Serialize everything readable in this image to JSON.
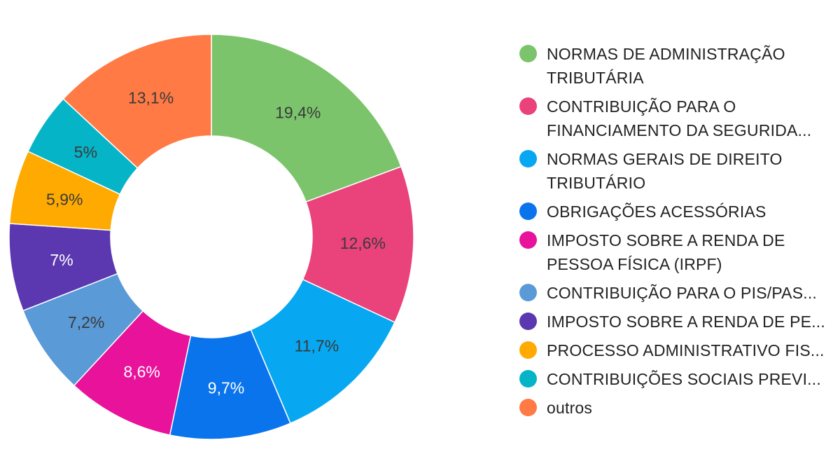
{
  "chart_data": {
    "type": "pie",
    "donut": true,
    "legend_position": "right",
    "slices": [
      {
        "label": "NORMAS DE ADMINISTRAÇÃO TRIBUTÁRIA",
        "value": 19.4,
        "display": "19,4%",
        "color": "#7cc46b",
        "label_color": "#3a3a3a"
      },
      {
        "label": "CONTRIBUIÇÃO PARA O FINANCIAMENTO DA SEGURIDA...",
        "value": 12.6,
        "display": "12,6%",
        "color": "#ea427b",
        "label_color": "#3a3a3a"
      },
      {
        "label": "NORMAS GERAIS DE DIREITO TRIBUTÁRIO",
        "value": 11.7,
        "display": "11,7%",
        "color": "#07a8f1",
        "label_color": "#3a3a3a"
      },
      {
        "label": "OBRIGAÇÕES ACESSÓRIAS",
        "value": 9.7,
        "display": "9,7%",
        "color": "#0a74ec",
        "label_color": "#ffffff"
      },
      {
        "label": "IMPOSTO SOBRE A RENDA DE PESSOA FÍSICA (IRPF)",
        "value": 8.6,
        "display": "8,6%",
        "color": "#e8129b",
        "label_color": "#ffffff"
      },
      {
        "label": "CONTRIBUIÇÃO PARA O PIS/PAS...",
        "value": 7.2,
        "display": "7,2%",
        "color": "#5a9ad6",
        "label_color": "#3a3a3a"
      },
      {
        "label": "IMPOSTO SOBRE A RENDA DE PE...",
        "value": 7.0,
        "display": "7%",
        "color": "#5b37b0",
        "label_color": "#ffffff"
      },
      {
        "label": "PROCESSO ADMINISTRATIVO FIS...",
        "value": 5.9,
        "display": "5,9%",
        "color": "#ffaa00",
        "label_color": "#3a3a3a"
      },
      {
        "label": "CONTRIBUIÇÕES SOCIAIS PREVI...",
        "value": 5.0,
        "display": "5%",
        "color": "#06b4c8",
        "label_color": "#3a3a3a"
      },
      {
        "label": "outros",
        "value": 13.1,
        "display": "13,1%",
        "color": "#ff7a45",
        "label_color": "#3a3a3a"
      }
    ]
  },
  "legend": {
    "items": [
      {
        "label": "NORMAS DE ADMINISTRAÇÃO TRIBUTÁRIA",
        "color": "#7cc46b"
      },
      {
        "label": "CONTRIBUIÇÃO PARA O FINANCIAMENTO DA SEGURIDA...",
        "color": "#ea427b"
      },
      {
        "label": "NORMAS GERAIS DE DIREITO TRIBUTÁRIO",
        "color": "#07a8f1"
      },
      {
        "label": "OBRIGAÇÕES ACESSÓRIAS",
        "color": "#0a74ec"
      },
      {
        "label": "IMPOSTO SOBRE A RENDA DE PESSOA FÍSICA (IRPF)",
        "color": "#e8129b"
      },
      {
        "label": "CONTRIBUIÇÃO PARA O PIS/PAS...",
        "color": "#5a9ad6"
      },
      {
        "label": "IMPOSTO SOBRE A RENDA DE PE...",
        "color": "#5b37b0"
      },
      {
        "label": "PROCESSO ADMINISTRATIVO FIS...",
        "color": "#ffaa00"
      },
      {
        "label": "CONTRIBUIÇÕES SOCIAIS PREVI...",
        "color": "#06b4c8"
      },
      {
        "label": "outros",
        "color": "#ff7a45"
      }
    ]
  }
}
